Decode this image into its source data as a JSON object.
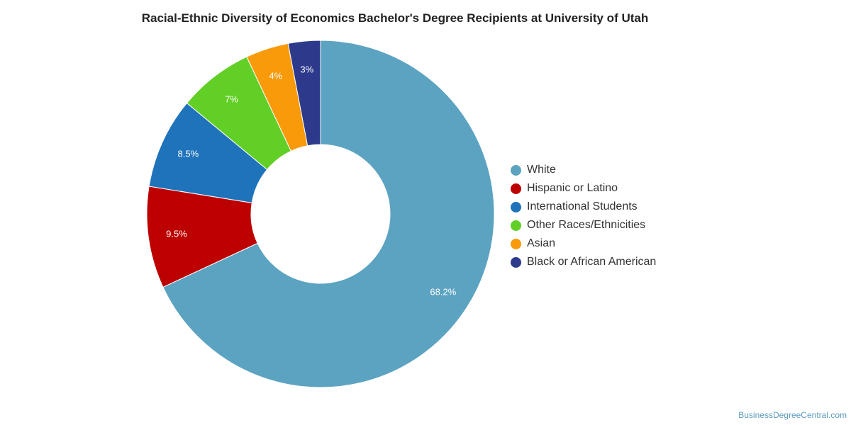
{
  "chart_data": {
    "type": "pie",
    "title": "Racial-Ethnic Diversity of Economics Bachelor's Degree Recipients at University of Utah",
    "legend_position": "right",
    "slices": [
      {
        "name": "White",
        "value": 68.2,
        "label": "68.2%",
        "color": "#5ba3c1"
      },
      {
        "name": "Hispanic or Latino",
        "value": 9.5,
        "label": "9.5%",
        "color": "#bd0000"
      },
      {
        "name": "International Students",
        "value": 8.5,
        "label": "8.5%",
        "color": "#1f73bb"
      },
      {
        "name": "Other Races/Ethnicities",
        "value": 7,
        "label": "7%",
        "color": "#62cf26"
      },
      {
        "name": "Asian",
        "value": 4,
        "label": "4%",
        "color": "#f89a0a"
      },
      {
        "name": "Black or African American",
        "value": 3,
        "label": "3%",
        "color": "#2d3a8c"
      }
    ]
  },
  "watermark": "BusinessDegreeCentral.com"
}
